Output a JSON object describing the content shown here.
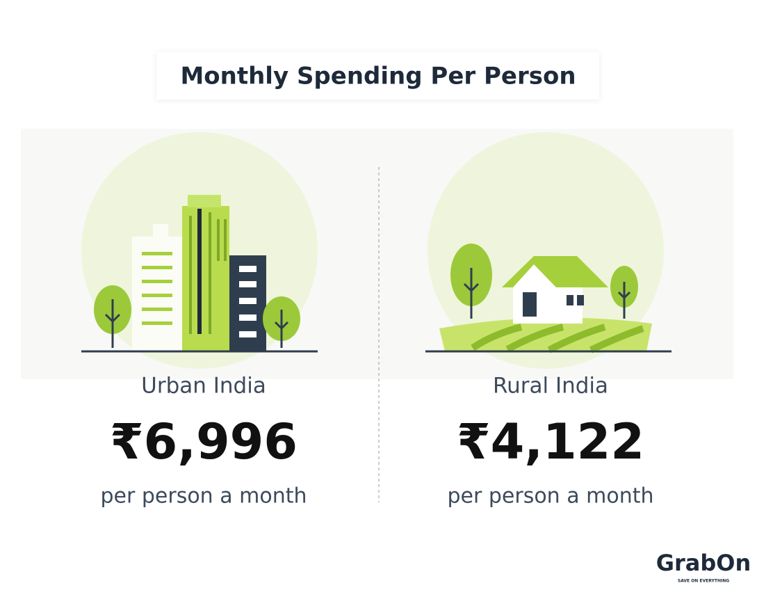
{
  "header": {
    "title": "Monthly Spending Per Person"
  },
  "panels": [
    {
      "label": "Urban India",
      "amount": "₹6,996",
      "note": "per person a month"
    },
    {
      "label": "Rural India",
      "amount": "₹4,122",
      "note": "per person a month"
    }
  ],
  "brand": {
    "name": "GrabOn",
    "tagline": "SAVE ON EVERYTHING"
  }
}
